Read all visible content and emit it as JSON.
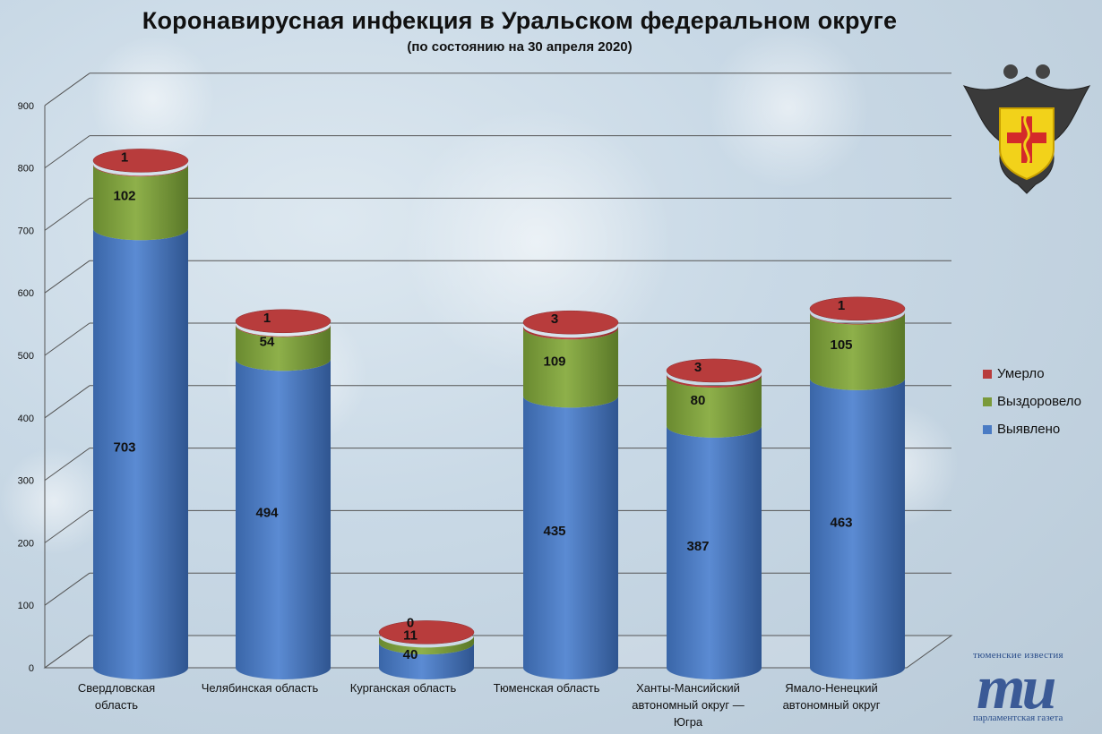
{
  "header": {
    "title": "Коронавирусная инфекция в Уральском федеральном округе",
    "subtitle": "(по состоянию на 30 апреля 2020)"
  },
  "brand": {
    "top": "тюменские известия",
    "mark": "ти",
    "bottom": "парламентская газета"
  },
  "colors": {
    "detected": "#4a7bc4",
    "recovered": "#7a9a3a",
    "died": "#b83c3c"
  },
  "chart_data": {
    "type": "bar",
    "stacked": true,
    "ylim": [
      0,
      900
    ],
    "yticks": [
      "0",
      "100",
      "200",
      "300",
      "400",
      "500",
      "600",
      "700",
      "800",
      "900"
    ],
    "grid": true,
    "legend_position": "right",
    "categories": [
      "Свердловская область",
      "Челябинская область",
      "Курганская область",
      "Тюменская область",
      "Ханты-Мансийский автономный округ — Югра",
      "Ямало-Ненецкий автономный округ"
    ],
    "category_lines": [
      [
        "Свердловская",
        "область"
      ],
      [
        "Челябинская область"
      ],
      [
        "Курганская область"
      ],
      [
        "Тюменская область"
      ],
      [
        "Ханты-Мансийский",
        "автономный округ —",
        "Югра"
      ],
      [
        "Ямало-Ненецкий",
        "автономный округ"
      ]
    ],
    "series": [
      {
        "name": "Выявлено",
        "values": [
          703,
          494,
          40,
          435,
          387,
          463
        ]
      },
      {
        "name": "Выздоровело",
        "values": [
          102,
          54,
          11,
          109,
          80,
          105
        ]
      },
      {
        "name": "Умерло",
        "values": [
          1,
          1,
          0,
          3,
          3,
          1
        ]
      }
    ],
    "legend": [
      "Умерло",
      "Выздоровело",
      "Выявлено"
    ]
  }
}
